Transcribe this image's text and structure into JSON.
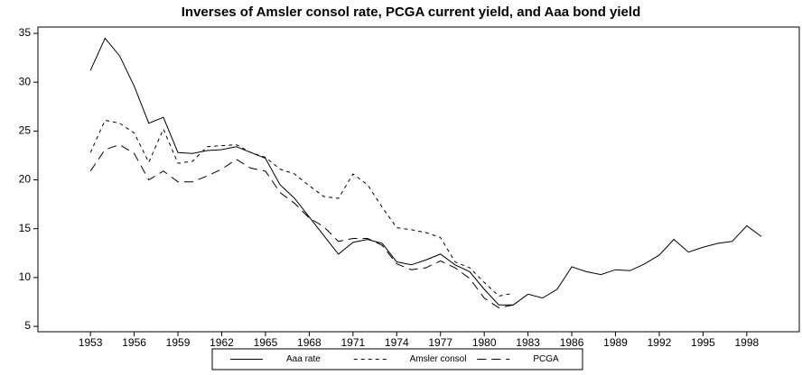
{
  "chart_data": {
    "type": "line",
    "title": "Inverses of Amsler consol rate, PCGA current yield, and Aaa bond yield",
    "x": [
      1953,
      1954,
      1955,
      1956,
      1957,
      1958,
      1959,
      1960,
      1961,
      1962,
      1963,
      1964,
      1965,
      1966,
      1967,
      1968,
      1969,
      1970,
      1971,
      1972,
      1973,
      1974,
      1975,
      1976,
      1977,
      1978,
      1979,
      1980,
      1981,
      1982,
      1983,
      1984,
      1985,
      1986,
      1987,
      1988,
      1989,
      1990,
      1991,
      1992,
      1993,
      1994,
      1995,
      1996,
      1997,
      1998,
      1999
    ],
    "series": [
      {
        "name": "Aaa rate",
        "color": "#000000",
        "linestyle": "solid",
        "values": [
          31.2,
          34.5,
          32.7,
          29.6,
          25.8,
          26.4,
          22.8,
          22.7,
          23.0,
          23.1,
          23.4,
          22.8,
          22.2,
          19.5,
          18.1,
          16.2,
          14.3,
          12.4,
          13.6,
          13.9,
          13.5,
          11.6,
          11.3,
          11.8,
          12.4,
          11.3,
          10.6,
          8.8,
          7.2,
          7.2,
          8.3,
          7.9,
          8.8,
          11.1,
          10.6,
          10.3,
          10.8,
          10.7,
          11.4,
          12.3,
          13.9,
          12.6,
          13.1,
          13.5,
          13.7,
          15.3,
          14.2
        ]
      },
      {
        "name": "Amsler consol",
        "color": "#000000",
        "linestyle": "dashed",
        "values": [
          22.8,
          26.1,
          25.8,
          24.8,
          21.8,
          25.2,
          21.7,
          21.9,
          23.4,
          23.5,
          23.6,
          22.8,
          22.3,
          21.1,
          20.6,
          19.4,
          18.3,
          18.1,
          20.6,
          19.5,
          17.2,
          15.1,
          14.9,
          14.6,
          14.1,
          11.6,
          11.0,
          9.5,
          8.1,
          8.4,
          null,
          null,
          null,
          null,
          null,
          null,
          null,
          null,
          null,
          null,
          null,
          null,
          null,
          null,
          null,
          null,
          null
        ]
      },
      {
        "name": "PCGA",
        "color": "#000000",
        "linestyle": "longdash",
        "values": [
          20.9,
          23.1,
          23.6,
          22.7,
          20.0,
          20.9,
          19.8,
          19.8,
          20.4,
          21.1,
          22.1,
          21.2,
          20.9,
          18.7,
          17.6,
          16.1,
          15.2,
          13.7,
          14.0,
          14.0,
          13.3,
          11.4,
          10.8,
          11.0,
          11.7,
          11.0,
          9.9,
          7.9,
          6.9,
          7.2,
          null,
          null,
          null,
          null,
          null,
          null,
          null,
          null,
          null,
          null,
          null,
          null,
          null,
          null,
          null,
          null,
          null
        ]
      }
    ],
    "xlim": [
      1949.4,
      2001.6
    ],
    "xticks": [
      1953,
      1956,
      1959,
      1962,
      1965,
      1968,
      1971,
      1974,
      1977,
      1980,
      1983,
      1986,
      1989,
      1992,
      1995,
      1998
    ],
    "ylim": [
      4.45,
      35.65
    ],
    "yticks": [
      5,
      10,
      15,
      20,
      25,
      30,
      35
    ],
    "legend": "bottom"
  }
}
